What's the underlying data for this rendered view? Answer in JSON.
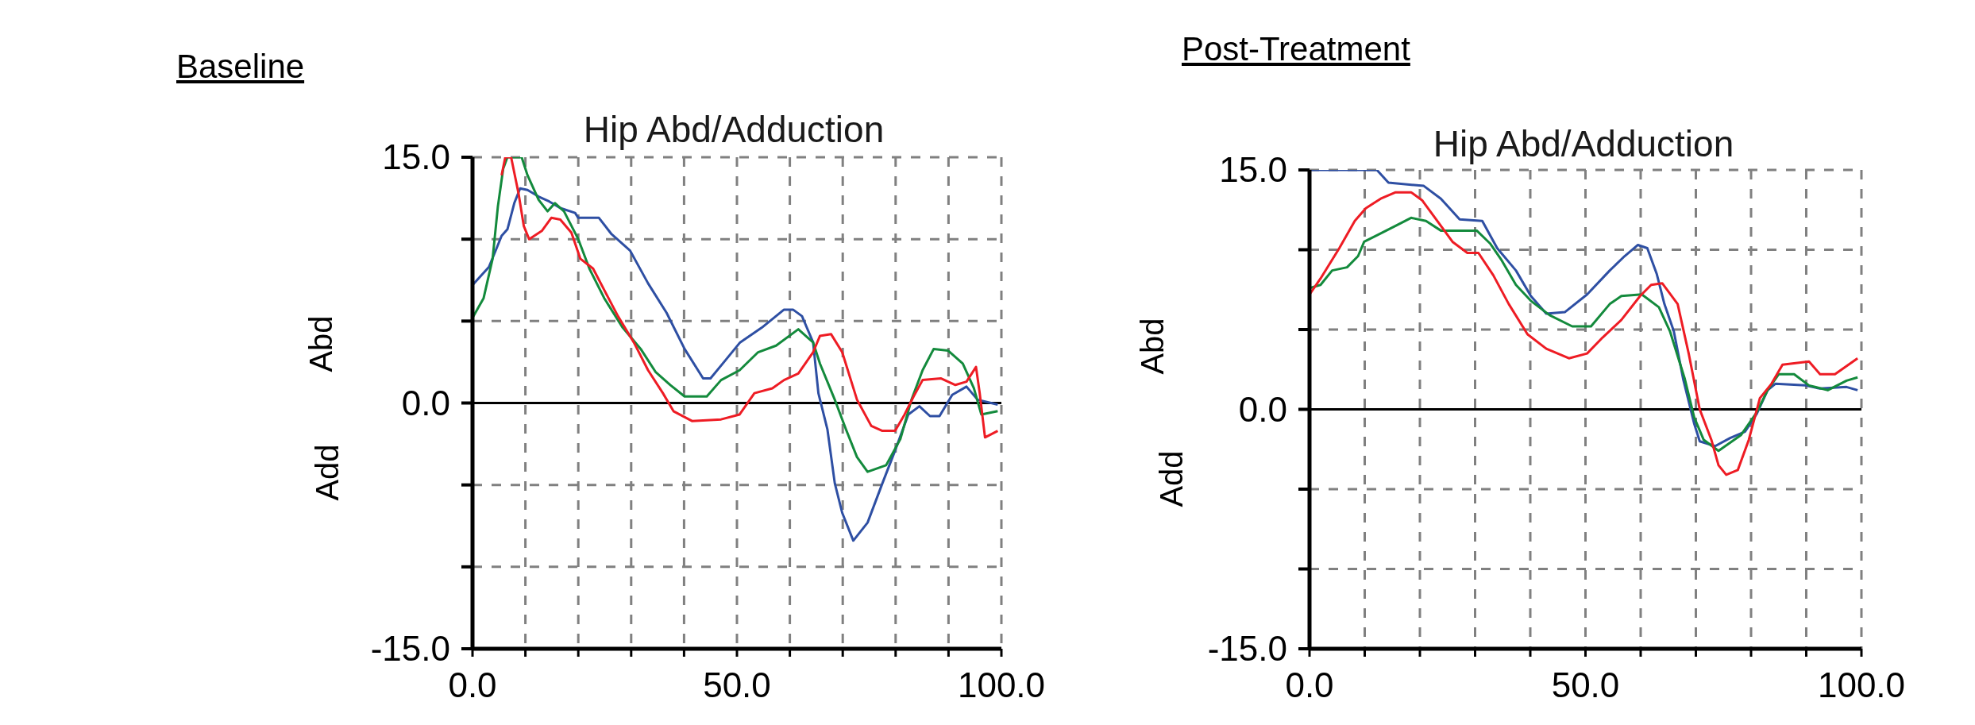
{
  "chart_data": [
    {
      "type": "line",
      "title": "Baseline",
      "subtitle": "Hip Abd/Adduction",
      "ylabel": "Abd",
      "annotations": [
        "Add"
      ],
      "xlim": [
        0,
        100
      ],
      "ylim": [
        -15,
        15
      ],
      "xticks": [
        {
          "value": 0,
          "label": "0.0"
        },
        {
          "value": 10,
          "label": null
        },
        {
          "value": 20,
          "label": null
        },
        {
          "value": 30,
          "label": null
        },
        {
          "value": 40,
          "label": null
        },
        {
          "value": 50,
          "label": "50.0"
        },
        {
          "value": 60,
          "label": null
        },
        {
          "value": 70,
          "label": null
        },
        {
          "value": 80,
          "label": null
        },
        {
          "value": 90,
          "label": null
        },
        {
          "value": 100,
          "label": "100.0"
        }
      ],
      "yticks": [
        {
          "value": -15,
          "label": "-15.0"
        },
        {
          "value": -10,
          "label": null
        },
        {
          "value": -5,
          "label": null
        },
        {
          "value": 0,
          "label": "0.0"
        },
        {
          "value": 5,
          "label": null
        },
        {
          "value": 10,
          "label": null
        },
        {
          "value": 15,
          "label": "15.0"
        }
      ],
      "grid": true,
      "marker": "none",
      "line_style": "solid",
      "ref_lines": [
        {
          "axis": "y",
          "value": 0,
          "color": "#000000"
        }
      ],
      "series": [
        {
          "color": "#2e4fa3",
          "x": [
            0,
            3.1,
            4.5,
            5.5,
            6.6,
            7.9,
            9,
            10.4,
            12.5,
            14.5,
            16.6,
            19.4,
            20,
            23.9,
            26.3,
            29.8,
            33.2,
            36.7,
            40.1,
            43.6,
            45,
            47.8,
            50.6,
            54.7,
            58.9,
            60.6,
            62.3,
            64.4,
            65.4,
            67.1,
            68.5,
            69.9,
            72,
            74.7,
            77.5,
            79.9,
            82.4,
            84.5,
            86.5,
            88.3,
            90.7,
            93.4,
            95.5,
            99.3
          ],
          "values": [
            7.2,
            8.3,
            9.4,
            10.2,
            10.6,
            12.2,
            13.1,
            13,
            12.6,
            12.3,
            11.9,
            11.6,
            11.3,
            11.3,
            10.3,
            9.3,
            7.3,
            5.5,
            3.3,
            1.5,
            1.5,
            2.6,
            3.7,
            4.6,
            5.7,
            5.7,
            5.3,
            3.7,
            0.6,
            -1.6,
            -4.9,
            -6.7,
            -8.4,
            -7.3,
            -4.9,
            -2.9,
            -0.7,
            -0.2,
            -0.8,
            -0.8,
            0.5,
            1,
            0.2,
            -0.1
          ]
        },
        {
          "color": "#138a3c",
          "x": [
            0,
            2.1,
            3.8,
            4.8,
            5.8,
            6.6,
            9.3,
            10.4,
            12.5,
            14.2,
            15.6,
            17.3,
            20,
            22.1,
            24.9,
            28.4,
            31.8,
            34.6,
            37.4,
            40.1,
            44.3,
            47,
            50.5,
            54,
            57.4,
            61.6,
            64.4,
            65.7,
            68.5,
            70.6,
            72.7,
            74.7,
            78.2,
            80.9,
            83,
            85.1,
            87.2,
            89.9,
            92.7,
            94.8,
            96.2,
            99.3
          ],
          "values": [
            5.2,
            6.4,
            8.8,
            12,
            14.3,
            15,
            15,
            13.9,
            12.4,
            11.7,
            12.2,
            11.7,
            10,
            8.2,
            6.4,
            4.6,
            3.3,
            1.9,
            1.1,
            0.4,
            0.4,
            1.4,
            2,
            3.1,
            3.5,
            4.5,
            3.7,
            2.4,
            0.2,
            -1.6,
            -3.3,
            -4.2,
            -3.8,
            -2.2,
            0.2,
            2,
            3.3,
            3.2,
            2.4,
            0.9,
            -0.7,
            -0.5
          ]
        },
        {
          "color": "#ee1c24",
          "x": [
            5.5,
            6.2,
            7.3,
            8.7,
            9.7,
            10.7,
            13.1,
            14.9,
            16.6,
            18.7,
            20.4,
            22.8,
            24.9,
            27.5,
            30.5,
            33.2,
            36,
            38,
            41.5,
            47,
            50.5,
            53.3,
            56.7,
            58.9,
            61.6,
            64.4,
            65.7,
            67.8,
            69.9,
            72.7,
            75.4,
            77.5,
            79.9,
            81.7,
            83.4,
            85.1,
            88.6,
            91.3,
            93.4,
            95.2,
            95.9,
            96.9,
            99.3
          ],
          "values": [
            13.9,
            15,
            15,
            12.8,
            10.8,
            10,
            10.5,
            11.3,
            11.2,
            10.4,
            8.8,
            8.2,
            6.9,
            5.3,
            3.7,
            2,
            0.6,
            -0.5,
            -1.1,
            -1,
            -0.7,
            0.6,
            0.9,
            1.4,
            1.8,
            3.1,
            4.1,
            4.2,
            3.1,
            0.2,
            -1.4,
            -1.7,
            -1.7,
            -0.7,
            0.4,
            1.4,
            1.5,
            1.1,
            1.3,
            2.2,
            0.6,
            -2.1,
            -1.7
          ]
        }
      ]
    },
    {
      "type": "line",
      "title": "Post-Treatment",
      "subtitle": "Hip Abd/Adduction",
      "ylabel": "Abd",
      "annotations": [
        "Add"
      ],
      "xlim": [
        0,
        100
      ],
      "ylim": [
        -15,
        15
      ],
      "xticks": [
        {
          "value": 0,
          "label": "0.0"
        },
        {
          "value": 10,
          "label": null
        },
        {
          "value": 20,
          "label": null
        },
        {
          "value": 30,
          "label": null
        },
        {
          "value": 40,
          "label": null
        },
        {
          "value": 50,
          "label": "50.0"
        },
        {
          "value": 60,
          "label": null
        },
        {
          "value": 70,
          "label": null
        },
        {
          "value": 80,
          "label": null
        },
        {
          "value": 90,
          "label": null
        },
        {
          "value": 100,
          "label": "100.0"
        }
      ],
      "yticks": [
        {
          "value": -15,
          "label": "-15.0"
        },
        {
          "value": -10,
          "label": null
        },
        {
          "value": -5,
          "label": null
        },
        {
          "value": 0,
          "label": "0.0"
        },
        {
          "value": 5,
          "label": null
        },
        {
          "value": 10,
          "label": null
        },
        {
          "value": 15,
          "label": "15.0"
        }
      ],
      "grid": true,
      "marker": "none",
      "line_style": "solid",
      "ref_lines": [
        {
          "axis": "y",
          "value": 0,
          "color": "#000000"
        }
      ],
      "series": [
        {
          "color": "#2e4fa3",
          "x": [
            0,
            12.2,
            14.3,
            20.7,
            23.8,
            27.2,
            31.3,
            34,
            37.4,
            40.1,
            42.9,
            46.3,
            50.3,
            54.4,
            57.1,
            59.5,
            61.2,
            62.9,
            64.3,
            66,
            67.7,
            69.7,
            70.7,
            73.5,
            76.2,
            78.9,
            81,
            83,
            84.4,
            89.8,
            92.5,
            97.3,
            99.3
          ],
          "values": [
            15,
            15,
            14.2,
            14,
            13.2,
            11.9,
            11.8,
            10.1,
            8.7,
            7.1,
            6,
            6.1,
            7.2,
            8.7,
            9.6,
            10.3,
            10.1,
            8.5,
            6.6,
            4.9,
            1.9,
            -0.9,
            -2,
            -2.3,
            -1.8,
            -1.4,
            -0.3,
            1.2,
            1.6,
            1.5,
            1.3,
            1.4,
            1.2
          ]
        },
        {
          "color": "#138a3c",
          "x": [
            0,
            2,
            4.1,
            6.8,
            8.8,
            9.9,
            12.2,
            15.6,
            18.4,
            21.1,
            23.8,
            30.3,
            32.7,
            34.7,
            37.4,
            40.1,
            43.5,
            47.6,
            51,
            54.4,
            56.5,
            60.2,
            63.3,
            65.3,
            68,
            69.7,
            71.4,
            74.1,
            78.2,
            81,
            83,
            85,
            87.8,
            90.5,
            93.9,
            97.3,
            99.3
          ],
          "values": [
            7.6,
            7.8,
            8.7,
            8.9,
            9.6,
            10.5,
            10.9,
            11.5,
            12,
            11.8,
            11.2,
            11.2,
            10.4,
            9.4,
            7.8,
            6.8,
            5.9,
            5.2,
            5.2,
            6.6,
            7.1,
            7.2,
            6.4,
            4.9,
            1.9,
            -0.5,
            -1.9,
            -2.6,
            -1.6,
            -0.2,
            1.2,
            2.2,
            2.2,
            1.5,
            1.2,
            1.8,
            2
          ]
        },
        {
          "color": "#ee1c24",
          "x": [
            0,
            2,
            5.4,
            8.2,
            10.2,
            12.9,
            15.6,
            18.4,
            20.4,
            23.8,
            25.9,
            28.6,
            30.6,
            33.3,
            36.1,
            39.5,
            42.9,
            47,
            50.3,
            53.1,
            56.5,
            59.9,
            61.9,
            63.9,
            66.7,
            68.7,
            70.7,
            72.8,
            74.1,
            75.5,
            77.6,
            79.6,
            81.6,
            83.7,
            85.7,
            90.5,
            92.5,
            95.2,
            99.3
          ],
          "values": [
            7.2,
            8.2,
            10.1,
            11.8,
            12.6,
            13.2,
            13.6,
            13.6,
            13.1,
            11.5,
            10.5,
            9.8,
            9.8,
            8.4,
            6.6,
            4.7,
            3.8,
            3.2,
            3.5,
            4.5,
            5.6,
            7.1,
            7.8,
            7.9,
            6.6,
            3.5,
            0,
            -1.9,
            -3.5,
            -4.1,
            -3.8,
            -1.9,
            0.7,
            1.6,
            2.8,
            3,
            2.2,
            2.2,
            3.2
          ]
        }
      ]
    }
  ]
}
